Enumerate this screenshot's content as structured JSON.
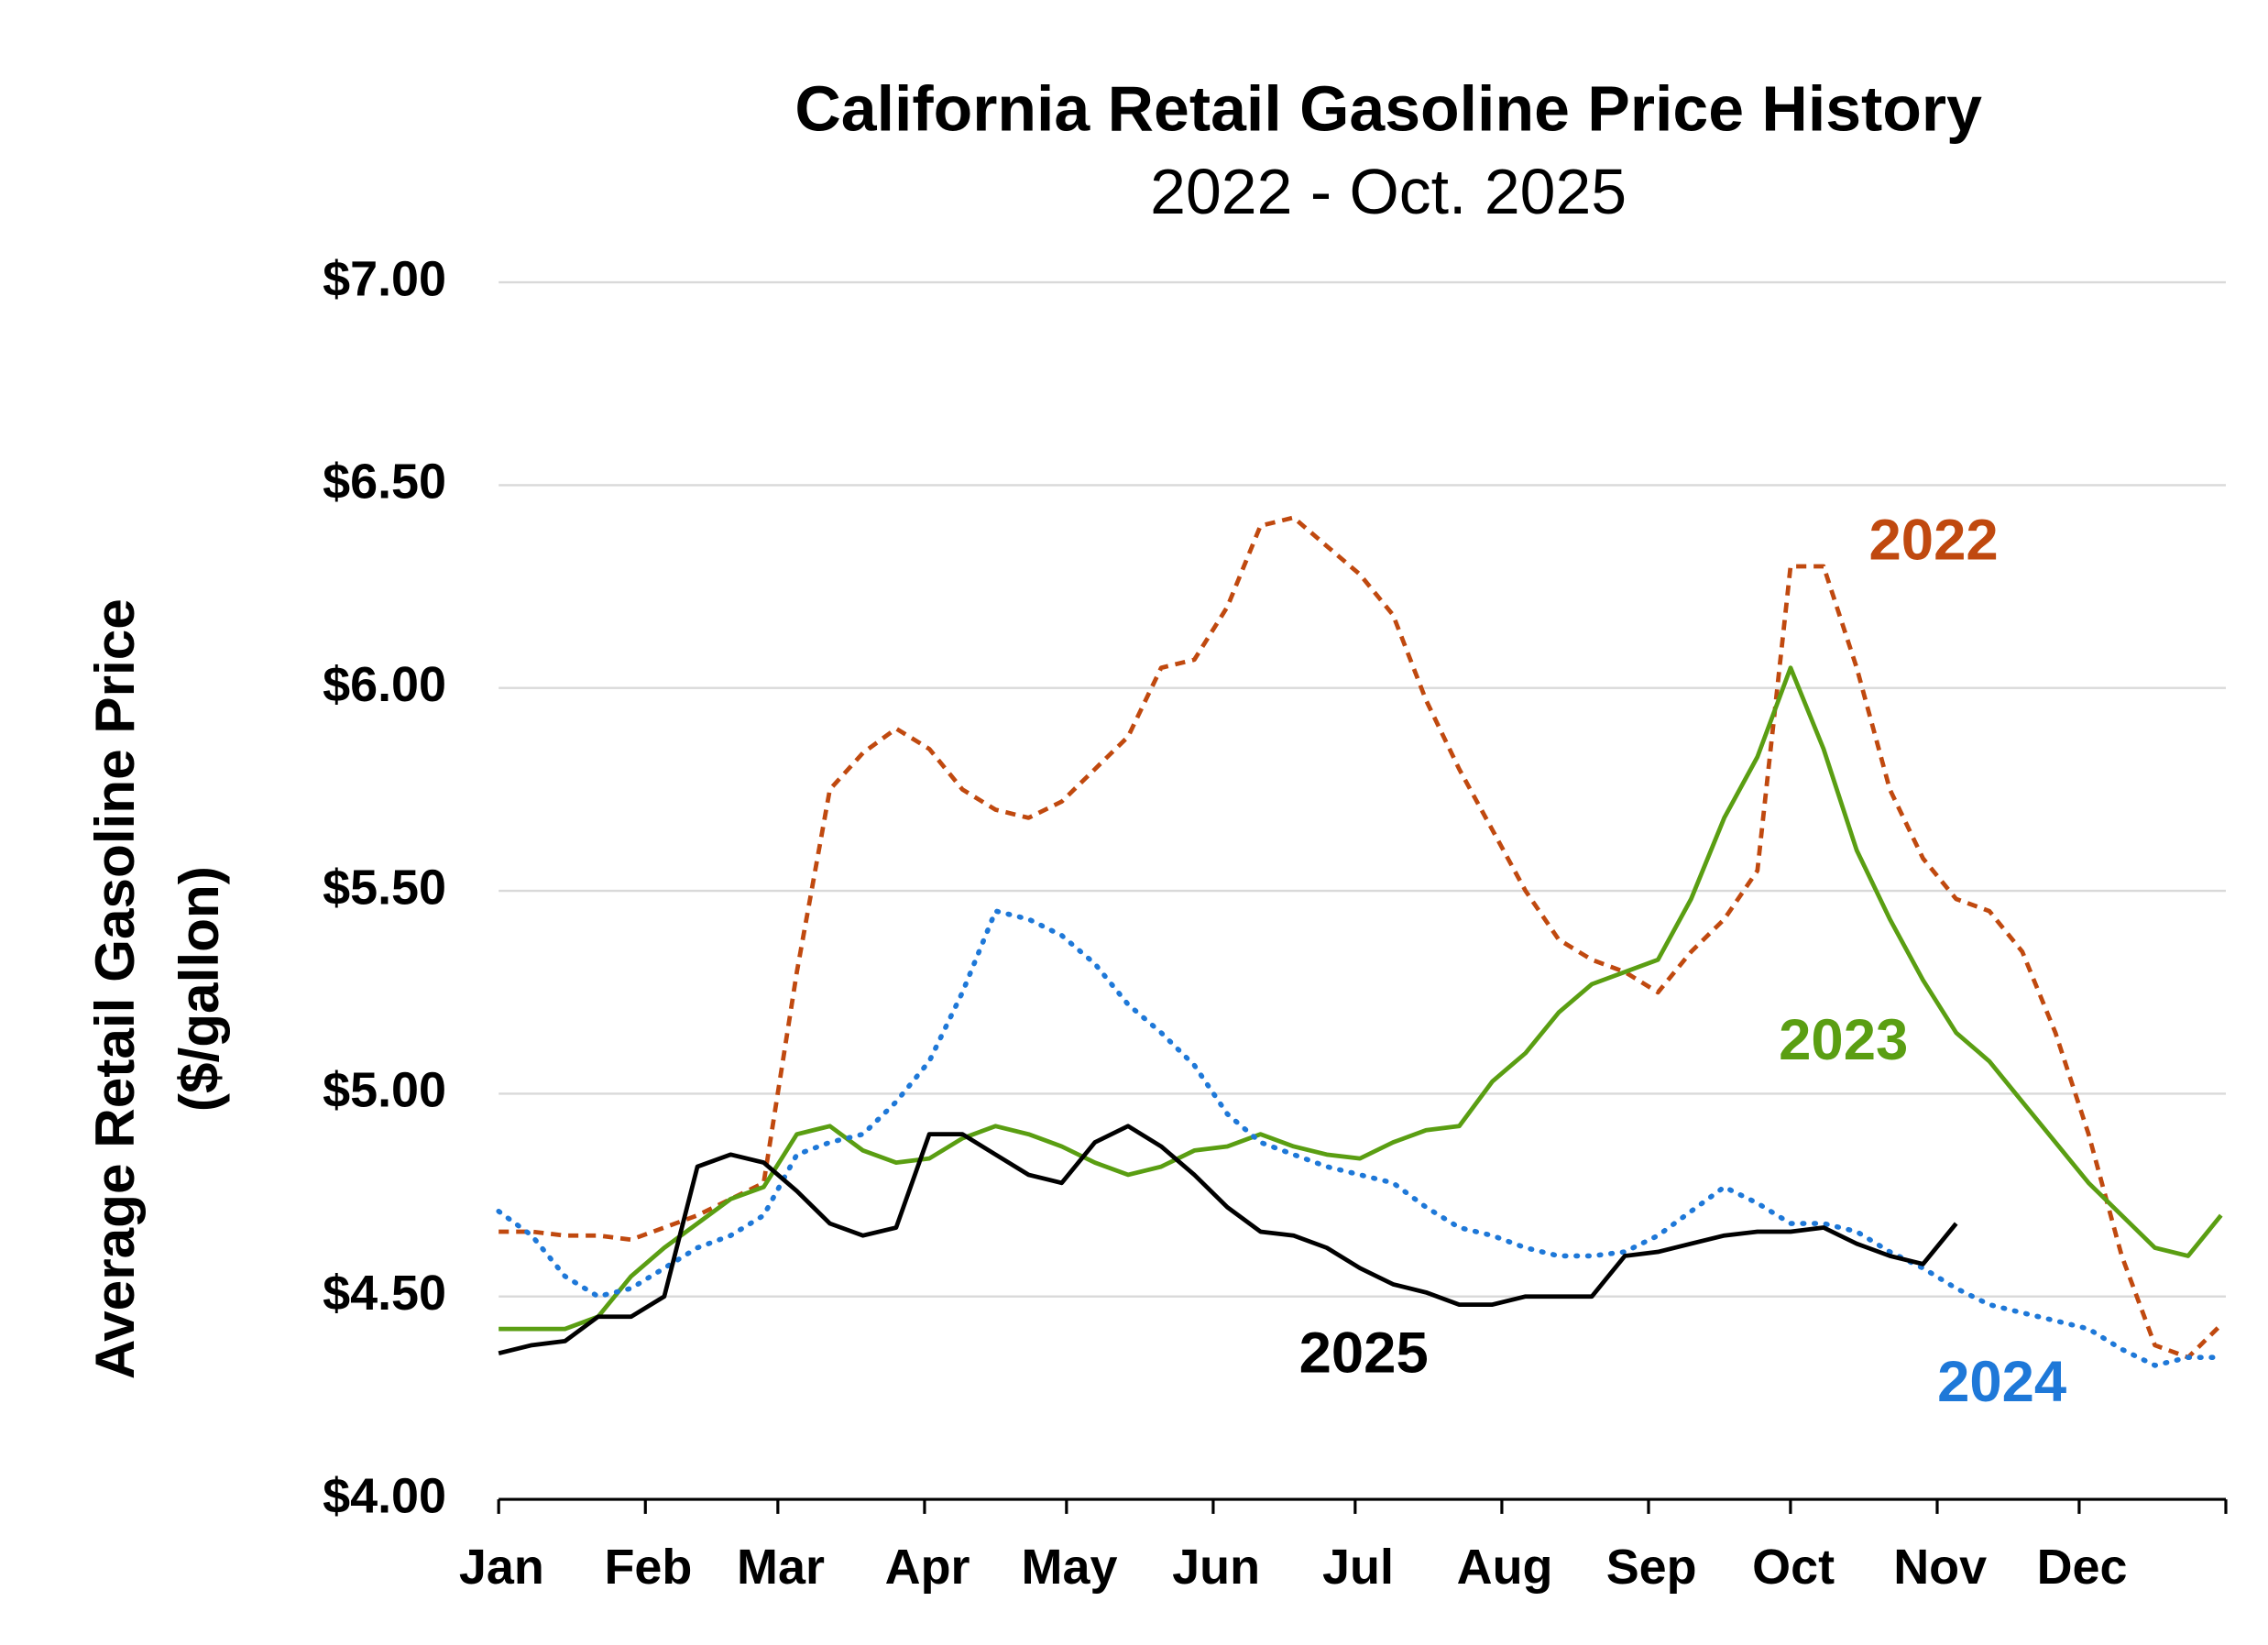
{
  "chart_data": {
    "type": "line",
    "title": "California Retail Gasoline Price History",
    "subtitle": "2022 - Oct. 2025",
    "ylabel": [
      "Average Retail Gasoline Price",
      "($/gallon)"
    ],
    "xlim": [
      1,
      366
    ],
    "xticks": [
      {
        "value": 1,
        "label": "Jan"
      },
      {
        "value": 32,
        "label": "Feb"
      },
      {
        "value": 60,
        "label": "Mar"
      },
      {
        "value": 91,
        "label": "Apr"
      },
      {
        "value": 121,
        "label": "May"
      },
      {
        "value": 152,
        "label": "Jun"
      },
      {
        "value": 182,
        "label": "Jul"
      },
      {
        "value": 213,
        "label": "Aug"
      },
      {
        "value": 244,
        "label": "Sep"
      },
      {
        "value": 274,
        "label": "Oct"
      },
      {
        "value": 305,
        "label": "Nov"
      },
      {
        "value": 335,
        "label": "Dec"
      }
    ],
    "ylim": [
      4,
      7
    ],
    "yticks": [
      {
        "value": 4,
        "label": "$4.00"
      },
      {
        "value": 4.5,
        "label": "$4.50"
      },
      {
        "value": 5,
        "label": "$5.00"
      },
      {
        "value": 5.5,
        "label": "$5.50"
      },
      {
        "value": 6,
        "label": "$6.00"
      },
      {
        "value": 6.5,
        "label": "$6.50"
      },
      {
        "value": 7,
        "label": "$7.00"
      }
    ],
    "grid": true,
    "x": [
      1,
      8,
      15,
      22,
      29,
      36,
      43,
      50,
      57,
      64,
      71,
      78,
      85,
      92,
      99,
      106,
      113,
      120,
      127,
      134,
      141,
      148,
      155,
      162,
      169,
      176,
      183,
      190,
      197,
      204,
      211,
      218,
      225,
      232,
      239,
      246,
      253,
      260,
      267,
      274,
      281,
      288,
      295,
      302,
      309,
      316,
      323,
      330,
      337,
      344,
      351,
      358,
      365
    ],
    "series": [
      {
        "name": "2022",
        "color": "#c0490f",
        "dash": "dashed",
        "values": [
          4.66,
          4.66,
          4.65,
          4.65,
          4.64,
          4.67,
          4.7,
          4.74,
          4.78,
          5.3,
          5.75,
          5.84,
          5.9,
          5.85,
          5.75,
          5.7,
          5.68,
          5.72,
          5.8,
          5.88,
          6.05,
          6.07,
          6.2,
          6.4,
          6.42,
          6.35,
          6.28,
          6.18,
          5.97,
          5.8,
          5.65,
          5.5,
          5.38,
          5.33,
          5.3,
          5.25,
          5.35,
          5.43,
          5.55,
          6.3,
          6.3,
          6.05,
          5.75,
          5.58,
          5.48,
          5.45,
          5.35,
          5.15,
          4.9,
          4.6,
          4.38,
          4.35,
          4.43
        ]
      },
      {
        "name": "2023",
        "color": "#5a9e12",
        "dash": "solid",
        "values": [
          4.42,
          4.42,
          4.42,
          4.45,
          4.55,
          4.62,
          4.68,
          4.74,
          4.77,
          4.9,
          4.92,
          4.86,
          4.83,
          4.84,
          4.89,
          4.92,
          4.9,
          4.87,
          4.83,
          4.8,
          4.82,
          4.86,
          4.87,
          4.9,
          4.87,
          4.85,
          4.84,
          4.88,
          4.91,
          4.92,
          5.03,
          5.1,
          5.2,
          5.27,
          5.3,
          5.33,
          5.48,
          5.68,
          5.83,
          6.05,
          5.85,
          5.6,
          5.43,
          5.28,
          5.15,
          5.08,
          4.98,
          4.88,
          4.78,
          4.7,
          4.62,
          4.6,
          4.7
        ]
      },
      {
        "name": "2024",
        "color": "#1e78d8",
        "dash": "dotted",
        "values": [
          4.71,
          4.65,
          4.55,
          4.5,
          4.52,
          4.57,
          4.62,
          4.65,
          4.7,
          4.85,
          4.88,
          4.9,
          4.98,
          5.08,
          5.25,
          5.45,
          5.43,
          5.39,
          5.32,
          5.22,
          5.15,
          5.07,
          4.95,
          4.88,
          4.85,
          4.82,
          4.8,
          4.78,
          4.72,
          4.67,
          4.65,
          4.62,
          4.6,
          4.6,
          4.61,
          4.65,
          4.71,
          4.77,
          4.73,
          4.68,
          4.68,
          4.66,
          4.61,
          4.57,
          4.52,
          4.48,
          4.46,
          4.44,
          4.42,
          4.37,
          4.33,
          4.35,
          4.35
        ]
      },
      {
        "name": "2025",
        "color": "#000000",
        "dash": "solid",
        "values": [
          4.36,
          4.38,
          4.39,
          4.45,
          4.45,
          4.5,
          4.82,
          4.85,
          4.83,
          4.76,
          4.68,
          4.65,
          4.67,
          4.9,
          4.9,
          4.85,
          4.8,
          4.78,
          4.88,
          4.92,
          4.87,
          4.8,
          4.72,
          4.66,
          4.65,
          4.62,
          4.57,
          4.53,
          4.51,
          4.48,
          4.48,
          4.5,
          4.5,
          4.5,
          4.6,
          4.61,
          4.63,
          4.65,
          4.66,
          4.66,
          4.67,
          4.63,
          4.6,
          4.58,
          4.68,
          null,
          null,
          null,
          null,
          null,
          null,
          null,
          null
        ]
      }
    ]
  }
}
